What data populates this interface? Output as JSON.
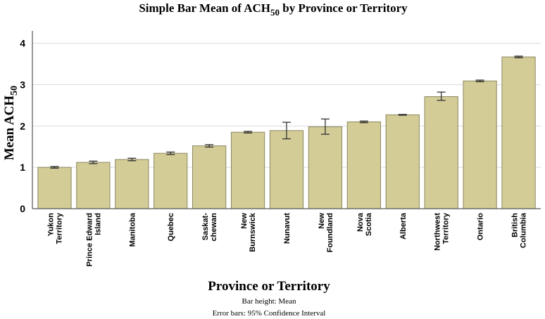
{
  "chart_data": {
    "type": "bar",
    "title": "Simple Bar Mean of ACH",
    "title_subscript": "50",
    "title_suffix": " by Province or Territory",
    "ylabel": "Mean ACH",
    "ylabel_subscript": "50",
    "xlabel": "Province or Territory",
    "ylim": [
      0,
      4.3
    ],
    "yticks": [
      0,
      1,
      2,
      3,
      4
    ],
    "grid": true,
    "categories": [
      [
        "Yukon",
        "Territory"
      ],
      [
        "Prince Edward",
        "Island"
      ],
      [
        "Manitoba"
      ],
      [
        "Quebec"
      ],
      [
        "Saskat-",
        "chewan"
      ],
      [
        "New",
        "Burnswick"
      ],
      [
        "Nunavut"
      ],
      [
        "New",
        "Foundland"
      ],
      [
        "Nova",
        "Scotia"
      ],
      [
        "Alberta"
      ],
      [
        "Northwest",
        "Territory"
      ],
      [
        "Ontario"
      ],
      [
        "British",
        "Columbia"
      ]
    ],
    "values": [
      1.0,
      1.12,
      1.19,
      1.34,
      1.52,
      1.85,
      1.89,
      1.98,
      2.1,
      2.27,
      2.71,
      3.09,
      3.67
    ],
    "error_low": [
      0.98,
      1.09,
      1.16,
      1.31,
      1.49,
      1.83,
      1.69,
      1.8,
      2.08,
      2.26,
      2.62,
      3.07,
      3.65
    ],
    "error_high": [
      1.02,
      1.15,
      1.22,
      1.37,
      1.55,
      1.87,
      2.09,
      2.17,
      2.12,
      2.28,
      2.82,
      3.11,
      3.69
    ],
    "bar_color": "#d3cc97",
    "bar_edge_color": "#8b8760",
    "footnotes": [
      "Bar height: Mean",
      "Error bars: 95% Confidence Interval"
    ]
  }
}
